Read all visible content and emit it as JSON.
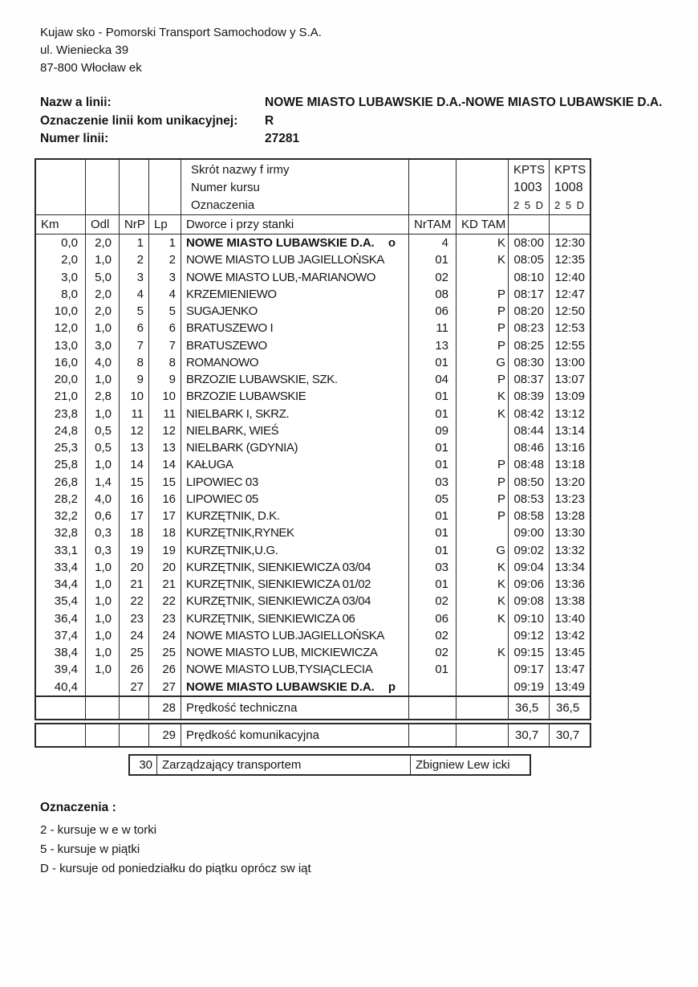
{
  "company": {
    "name": "Kujaw sko - Pomorski Transport Samochodow y S.A.",
    "street": "ul. Wieniecka 39",
    "city": "87-800 Włocław ek"
  },
  "line_info": {
    "rows": [
      {
        "label": "Nazw a linii:",
        "value": "NOWE MIASTO LUBAWSKIE D.A.-NOWE MIASTO LUBAWSKIE D.A."
      },
      {
        "label": "Oznaczenie linii kom unikacyjnej:",
        "value": "R"
      },
      {
        "label": "Numer linii:",
        "value": "27281"
      }
    ]
  },
  "table": {
    "meta_header": {
      "labels": [
        "Skrót nazwy f irmy",
        "Numer kursu",
        "Oznaczenia"
      ],
      "courses": [
        {
          "company": "KPTS",
          "number": "1003",
          "marks": "2 5 D"
        },
        {
          "company": "KPTS",
          "number": "1008",
          "marks": "2 5 D"
        }
      ]
    },
    "columns": [
      "Km",
      "Odl",
      "NrP",
      "Lp",
      "Dworce i przy stanki",
      "NrTAM",
      "KD TAM",
      "",
      ""
    ],
    "rows": [
      {
        "km": "0,0",
        "odl": "2,0",
        "nrp": "1",
        "lp": "1",
        "stop": "NOWE MIASTO LUBAWSKIE D.A.",
        "marker": "o",
        "nrtam": "4",
        "kd": "K",
        "t1": "08:00",
        "t2": "12:30",
        "bold": true
      },
      {
        "km": "2,0",
        "odl": "1,0",
        "nrp": "2",
        "lp": "2",
        "stop": "NOWE MIASTO LUB JAGIELLOŃSKA",
        "marker": "",
        "nrtam": "01",
        "kd": "K",
        "t1": "08:05",
        "t2": "12:35",
        "bold": false
      },
      {
        "km": "3,0",
        "odl": "5,0",
        "nrp": "3",
        "lp": "3",
        "stop": "NOWE MIASTO LUB,-MARIANOWO",
        "marker": "",
        "nrtam": "02",
        "kd": "",
        "t1": "08:10",
        "t2": "12:40",
        "bold": false
      },
      {
        "km": "8,0",
        "odl": "2,0",
        "nrp": "4",
        "lp": "4",
        "stop": "KRZEMIENIEWO",
        "marker": "",
        "nrtam": "08",
        "kd": "P",
        "t1": "08:17",
        "t2": "12:47",
        "bold": false
      },
      {
        "km": "10,0",
        "odl": "2,0",
        "nrp": "5",
        "lp": "5",
        "stop": "SUGAJENKO",
        "marker": "",
        "nrtam": "06",
        "kd": "P",
        "t1": "08:20",
        "t2": "12:50",
        "bold": false
      },
      {
        "km": "12,0",
        "odl": "1,0",
        "nrp": "6",
        "lp": "6",
        "stop": "BRATUSZEWO I",
        "marker": "",
        "nrtam": "11",
        "kd": "P",
        "t1": "08:23",
        "t2": "12:53",
        "bold": false
      },
      {
        "km": "13,0",
        "odl": "3,0",
        "nrp": "7",
        "lp": "7",
        "stop": "BRATUSZEWO",
        "marker": "",
        "nrtam": "13",
        "kd": "P",
        "t1": "08:25",
        "t2": "12:55",
        "bold": false
      },
      {
        "km": "16,0",
        "odl": "4,0",
        "nrp": "8",
        "lp": "8",
        "stop": "ROMANOWO",
        "marker": "",
        "nrtam": "01",
        "kd": "G",
        "t1": "08:30",
        "t2": "13:00",
        "bold": false
      },
      {
        "km": "20,0",
        "odl": "1,0",
        "nrp": "9",
        "lp": "9",
        "stop": "BRZOZIE LUBAWSKIE, SZK.",
        "marker": "",
        "nrtam": "04",
        "kd": "P",
        "t1": "08:37",
        "t2": "13:07",
        "bold": false
      },
      {
        "km": "21,0",
        "odl": "2,8",
        "nrp": "10",
        "lp": "10",
        "stop": "BRZOZIE LUBAWSKIE",
        "marker": "",
        "nrtam": "01",
        "kd": "K",
        "t1": "08:39",
        "t2": "13:09",
        "bold": false
      },
      {
        "km": "23,8",
        "odl": "1,0",
        "nrp": "11",
        "lp": "11",
        "stop": "NIELBARK I, SKRZ.",
        "marker": "",
        "nrtam": "01",
        "kd": "K",
        "t1": "08:42",
        "t2": "13:12",
        "bold": false
      },
      {
        "km": "24,8",
        "odl": "0,5",
        "nrp": "12",
        "lp": "12",
        "stop": "NIELBARK, WIEŚ",
        "marker": "",
        "nrtam": "09",
        "kd": "",
        "t1": "08:44",
        "t2": "13:14",
        "bold": false
      },
      {
        "km": "25,3",
        "odl": "0,5",
        "nrp": "13",
        "lp": "13",
        "stop": "NIELBARK (GDYNIA)",
        "marker": "",
        "nrtam": "01",
        "kd": "",
        "t1": "08:46",
        "t2": "13:16",
        "bold": false
      },
      {
        "km": "25,8",
        "odl": "1,0",
        "nrp": "14",
        "lp": "14",
        "stop": "KAŁUGA",
        "marker": "",
        "nrtam": "01",
        "kd": "P",
        "t1": "08:48",
        "t2": "13:18",
        "bold": false
      },
      {
        "km": "26,8",
        "odl": "1,4",
        "nrp": "15",
        "lp": "15",
        "stop": "LIPOWIEC 03",
        "marker": "",
        "nrtam": "03",
        "kd": "P",
        "t1": "08:50",
        "t2": "13:20",
        "bold": false
      },
      {
        "km": "28,2",
        "odl": "4,0",
        "nrp": "16",
        "lp": "16",
        "stop": "LIPOWIEC 05",
        "marker": "",
        "nrtam": "05",
        "kd": "P",
        "t1": "08:53",
        "t2": "13:23",
        "bold": false
      },
      {
        "km": "32,2",
        "odl": "0,6",
        "nrp": "17",
        "lp": "17",
        "stop": "KURZĘTNIK, D.K.",
        "marker": "",
        "nrtam": "01",
        "kd": "P",
        "t1": "08:58",
        "t2": "13:28",
        "bold": false
      },
      {
        "km": "32,8",
        "odl": "0,3",
        "nrp": "18",
        "lp": "18",
        "stop": "KURZĘTNIK,RYNEK",
        "marker": "",
        "nrtam": "01",
        "kd": "",
        "t1": "09:00",
        "t2": "13:30",
        "bold": false
      },
      {
        "km": "33,1",
        "odl": "0,3",
        "nrp": "19",
        "lp": "19",
        "stop": "KURZĘTNIK,U.G.",
        "marker": "",
        "nrtam": "01",
        "kd": "G",
        "t1": "09:02",
        "t2": "13:32",
        "bold": false
      },
      {
        "km": "33,4",
        "odl": "1,0",
        "nrp": "20",
        "lp": "20",
        "stop": "KURZĘTNIK, SIENKIEWICZA 03/04",
        "marker": "",
        "nrtam": "03",
        "kd": "K",
        "t1": "09:04",
        "t2": "13:34",
        "bold": false
      },
      {
        "km": "34,4",
        "odl": "1,0",
        "nrp": "21",
        "lp": "21",
        "stop": "KURZĘTNIK, SIENKIEWICZA 01/02",
        "marker": "",
        "nrtam": "01",
        "kd": "K",
        "t1": "09:06",
        "t2": "13:36",
        "bold": false
      },
      {
        "km": "35,4",
        "odl": "1,0",
        "nrp": "22",
        "lp": "22",
        "stop": "KURZĘTNIK, SIENKIEWICZA 03/04",
        "marker": "",
        "nrtam": "02",
        "kd": "K",
        "t1": "09:08",
        "t2": "13:38",
        "bold": false
      },
      {
        "km": "36,4",
        "odl": "1,0",
        "nrp": "23",
        "lp": "23",
        "stop": "KURZĘTNIK, SIENKIEWICZA 06",
        "marker": "",
        "nrtam": "06",
        "kd": "K",
        "t1": "09:10",
        "t2": "13:40",
        "bold": false
      },
      {
        "km": "37,4",
        "odl": "1,0",
        "nrp": "24",
        "lp": "24",
        "stop": "NOWE MIASTO LUB.JAGIELLOŃSKA",
        "marker": "",
        "nrtam": "02",
        "kd": "",
        "t1": "09:12",
        "t2": "13:42",
        "bold": false
      },
      {
        "km": "38,4",
        "odl": "1,0",
        "nrp": "25",
        "lp": "25",
        "stop": "NOWE MIASTO LUB, MICKIEWICZA",
        "marker": "",
        "nrtam": "02",
        "kd": "K",
        "t1": "09:15",
        "t2": "13:45",
        "bold": false
      },
      {
        "km": "39,4",
        "odl": "1,0",
        "nrp": "26",
        "lp": "26",
        "stop": "NOWE MIASTO LUB,TYSIĄCLECIA",
        "marker": "",
        "nrtam": "01",
        "kd": "",
        "t1": "09:17",
        "t2": "13:47",
        "bold": false
      },
      {
        "km": "40,4",
        "odl": "",
        "nrp": "27",
        "lp": "27",
        "stop": "NOWE MIASTO LUBAWSKIE D.A.",
        "marker": "p",
        "nrtam": "",
        "kd": "",
        "t1": "09:19",
        "t2": "13:49",
        "bold": true
      }
    ],
    "summary_rows": [
      {
        "lp": "28",
        "label": "Prędkość techniczna",
        "v1": "36,5",
        "v2": "36,5"
      },
      {
        "lp": "29",
        "label": "Prędkość komunikacyjna",
        "v1": "30,7",
        "v2": "30,7"
      }
    ],
    "manager_row": {
      "lp": "30",
      "label": "Zarządzający transportem",
      "value": "Zbigniew Lew icki"
    }
  },
  "legend": {
    "title": "Oznaczenia :",
    "items": [
      "2 - kursuje w e w torki",
      "5 - kursuje w  piątki",
      "D - kursuje od poniedziałku do piątku oprócz sw iąt"
    ]
  },
  "colors": {
    "text": "#151515",
    "border": "#2a2a2a",
    "background": "#fefefe"
  }
}
